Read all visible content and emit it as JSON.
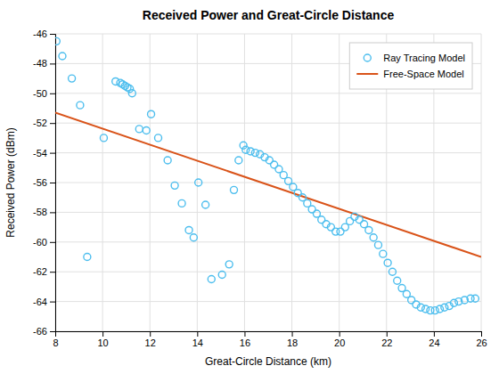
{
  "chart_data": {
    "type": "scatter",
    "title": "Received Power and Great-Circle Distance",
    "xlabel": "Great-Circle Distance (km)",
    "ylabel": "Received Power (dBm)",
    "xlim": [
      8,
      26
    ],
    "ylim": [
      -66,
      -46
    ],
    "xticks": [
      8,
      10,
      12,
      14,
      16,
      18,
      20,
      22,
      24,
      26
    ],
    "yticks": [
      -66,
      -64,
      -62,
      -60,
      -58,
      -56,
      -54,
      -52,
      -50,
      -48,
      -46
    ],
    "grid": true,
    "legend": "upper right",
    "series": [
      {
        "name": "Ray Tracing Model",
        "type": "scatter",
        "marker": "circle",
        "color": "#4DBEEE",
        "x": [
          8.05,
          8.3,
          8.7,
          9.05,
          9.35,
          10.05,
          10.55,
          10.75,
          10.85,
          10.95,
          11.05,
          11.15,
          11.25,
          11.55,
          11.85,
          12.05,
          12.35,
          12.75,
          13.05,
          13.35,
          13.65,
          13.85,
          14.05,
          14.35,
          14.6,
          15.05,
          15.35,
          15.55,
          15.75,
          15.95,
          16.05,
          16.25,
          16.45,
          16.65,
          16.85,
          17.05,
          17.25,
          17.45,
          17.65,
          17.85,
          18.05,
          18.25,
          18.45,
          18.65,
          18.85,
          19.05,
          19.25,
          19.45,
          19.65,
          19.85,
          20.05,
          20.25,
          20.45,
          20.65,
          20.85,
          21.05,
          21.25,
          21.45,
          21.65,
          21.85,
          22.05,
          22.25,
          22.45,
          22.65,
          22.85,
          23.05,
          23.25,
          23.45,
          23.65,
          23.85,
          24.05,
          24.25,
          24.45,
          24.65,
          24.85,
          25.05,
          25.3,
          25.55,
          25.75
        ],
        "values": [
          -46.5,
          -47.5,
          -49.0,
          -50.8,
          -61.0,
          -53.0,
          -49.2,
          -49.3,
          -49.4,
          -49.5,
          -49.6,
          -49.7,
          -50.0,
          -52.4,
          -52.5,
          -51.4,
          -53.0,
          -54.5,
          -56.2,
          -57.4,
          -59.2,
          -59.7,
          -56.0,
          -57.5,
          -62.5,
          -62.2,
          -61.5,
          -56.5,
          -54.5,
          -53.5,
          -53.8,
          -53.9,
          -54.0,
          -54.1,
          -54.3,
          -54.5,
          -54.8,
          -55.1,
          -55.5,
          -55.9,
          -56.3,
          -56.7,
          -57.0,
          -57.4,
          -57.8,
          -58.1,
          -58.5,
          -58.8,
          -59.0,
          -59.3,
          -59.3,
          -59.0,
          -58.6,
          -58.3,
          -58.5,
          -58.8,
          -59.2,
          -59.7,
          -60.2,
          -60.8,
          -61.4,
          -62.0,
          -62.6,
          -63.1,
          -63.5,
          -63.9,
          -64.2,
          -64.4,
          -64.5,
          -64.6,
          -64.6,
          -64.5,
          -64.4,
          -64.3,
          -64.1,
          -64.0,
          -63.9,
          -63.8,
          -63.8
        ]
      },
      {
        "name": "Free-Space Model",
        "type": "line",
        "line_style": "solid",
        "color": "#D95319",
        "x": [
          8,
          26
        ],
        "values": [
          -51.3,
          -61.0
        ]
      }
    ]
  }
}
